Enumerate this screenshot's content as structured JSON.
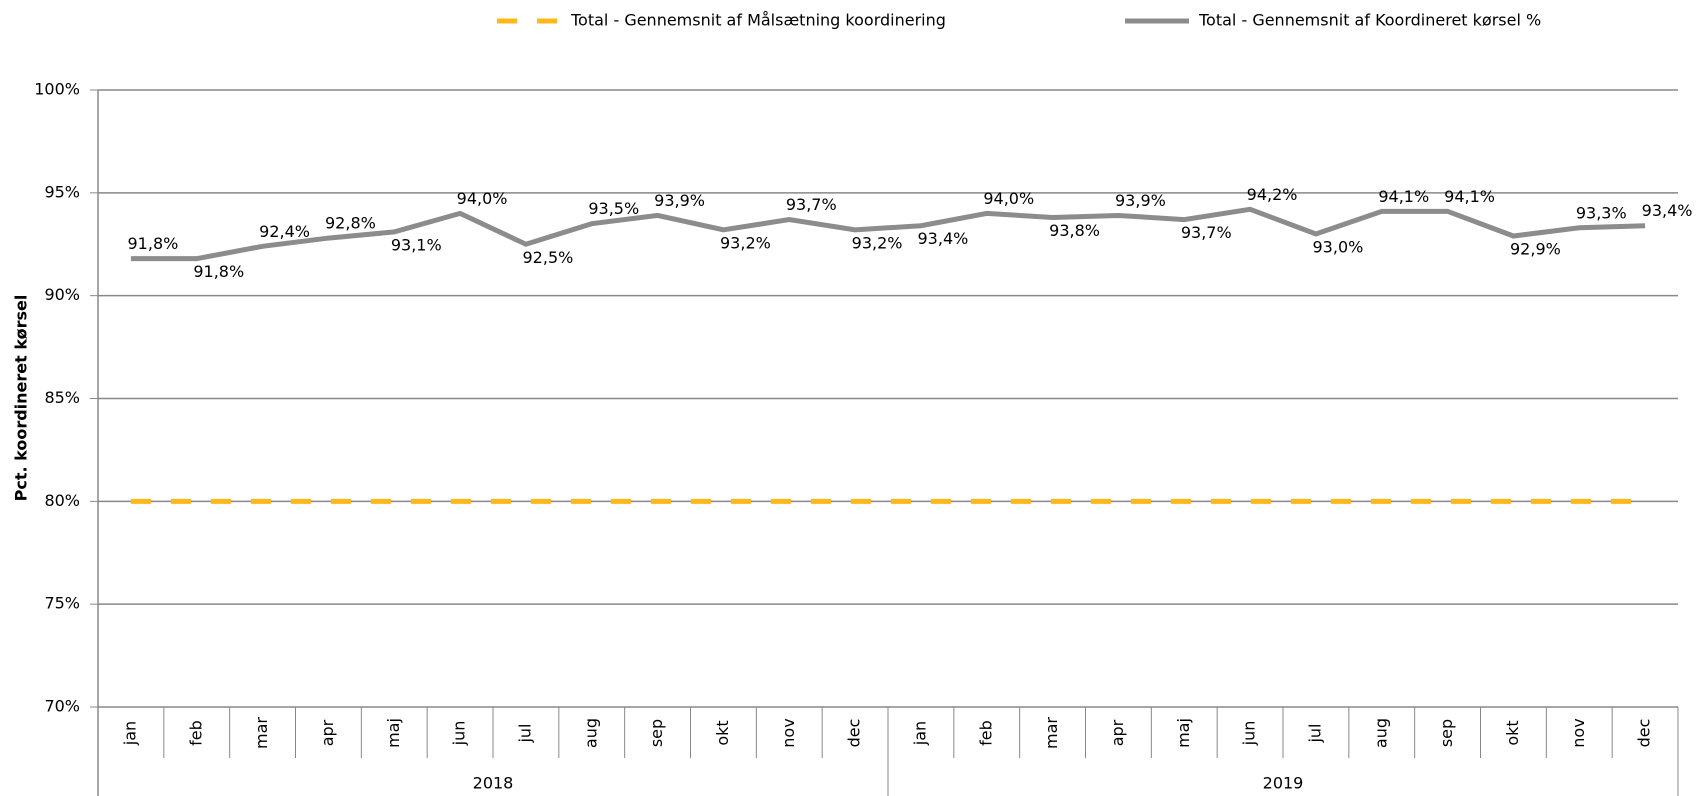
{
  "chart_data": {
    "type": "line",
    "y_label": "Pct. koordineret kørsel",
    "categories": [
      "jan",
      "feb",
      "mar",
      "apr",
      "maj",
      "jun",
      "jul",
      "aug",
      "sep",
      "okt",
      "nov",
      "dec",
      "jan",
      "feb",
      "mar",
      "apr",
      "maj",
      "jun",
      "jul",
      "aug",
      "sep",
      "okt",
      "nov",
      "dec"
    ],
    "category_groups": [
      {
        "label": "2018",
        "count": 12
      },
      {
        "label": "2019",
        "count": 12
      }
    ],
    "series": [
      {
        "name": "Total - Gennemsnit af Målsætning koordinering",
        "color": "#ffb81c",
        "dashed": true,
        "values": [
          80,
          80,
          80,
          80,
          80,
          80,
          80,
          80,
          80,
          80,
          80,
          80,
          80,
          80,
          80,
          80,
          80,
          80,
          80,
          80,
          80,
          80,
          80,
          80
        ]
      },
      {
        "name": "Total - Gennemsnit af Koordineret kørsel %",
        "color": "#8c8c8c",
        "dashed": false,
        "values": [
          91.8,
          91.8,
          92.4,
          92.8,
          93.1,
          94.0,
          92.5,
          93.5,
          93.9,
          93.2,
          93.7,
          93.2,
          93.4,
          94.0,
          93.8,
          93.9,
          93.7,
          94.2,
          93.0,
          94.1,
          94.1,
          92.9,
          93.3,
          93.4
        ],
        "value_labels": [
          "91,8%",
          "91,8%",
          "92,4%",
          "92,8%",
          "93,1%",
          "94,0%",
          "92,5%",
          "93,5%",
          "93,9%",
          "93,2%",
          "93,7%",
          "93,2%",
          "93,4%",
          "94,0%",
          "93,8%",
          "93,9%",
          "93,7%",
          "94,2%",
          "93,0%",
          "94,1%",
          "94,1%",
          "92,9%",
          "93,3%",
          "93,4%"
        ]
      }
    ],
    "ylim": [
      70,
      100
    ],
    "yticks": [
      {
        "value": 70,
        "label": "70%"
      },
      {
        "value": 75,
        "label": "75%"
      },
      {
        "value": 80,
        "label": "80%"
      },
      {
        "value": 85,
        "label": "85%"
      },
      {
        "value": 90,
        "label": "90%"
      },
      {
        "value": 95,
        "label": "95%"
      },
      {
        "value": 100,
        "label": "100%"
      }
    ],
    "grid": true,
    "legend": "top"
  }
}
